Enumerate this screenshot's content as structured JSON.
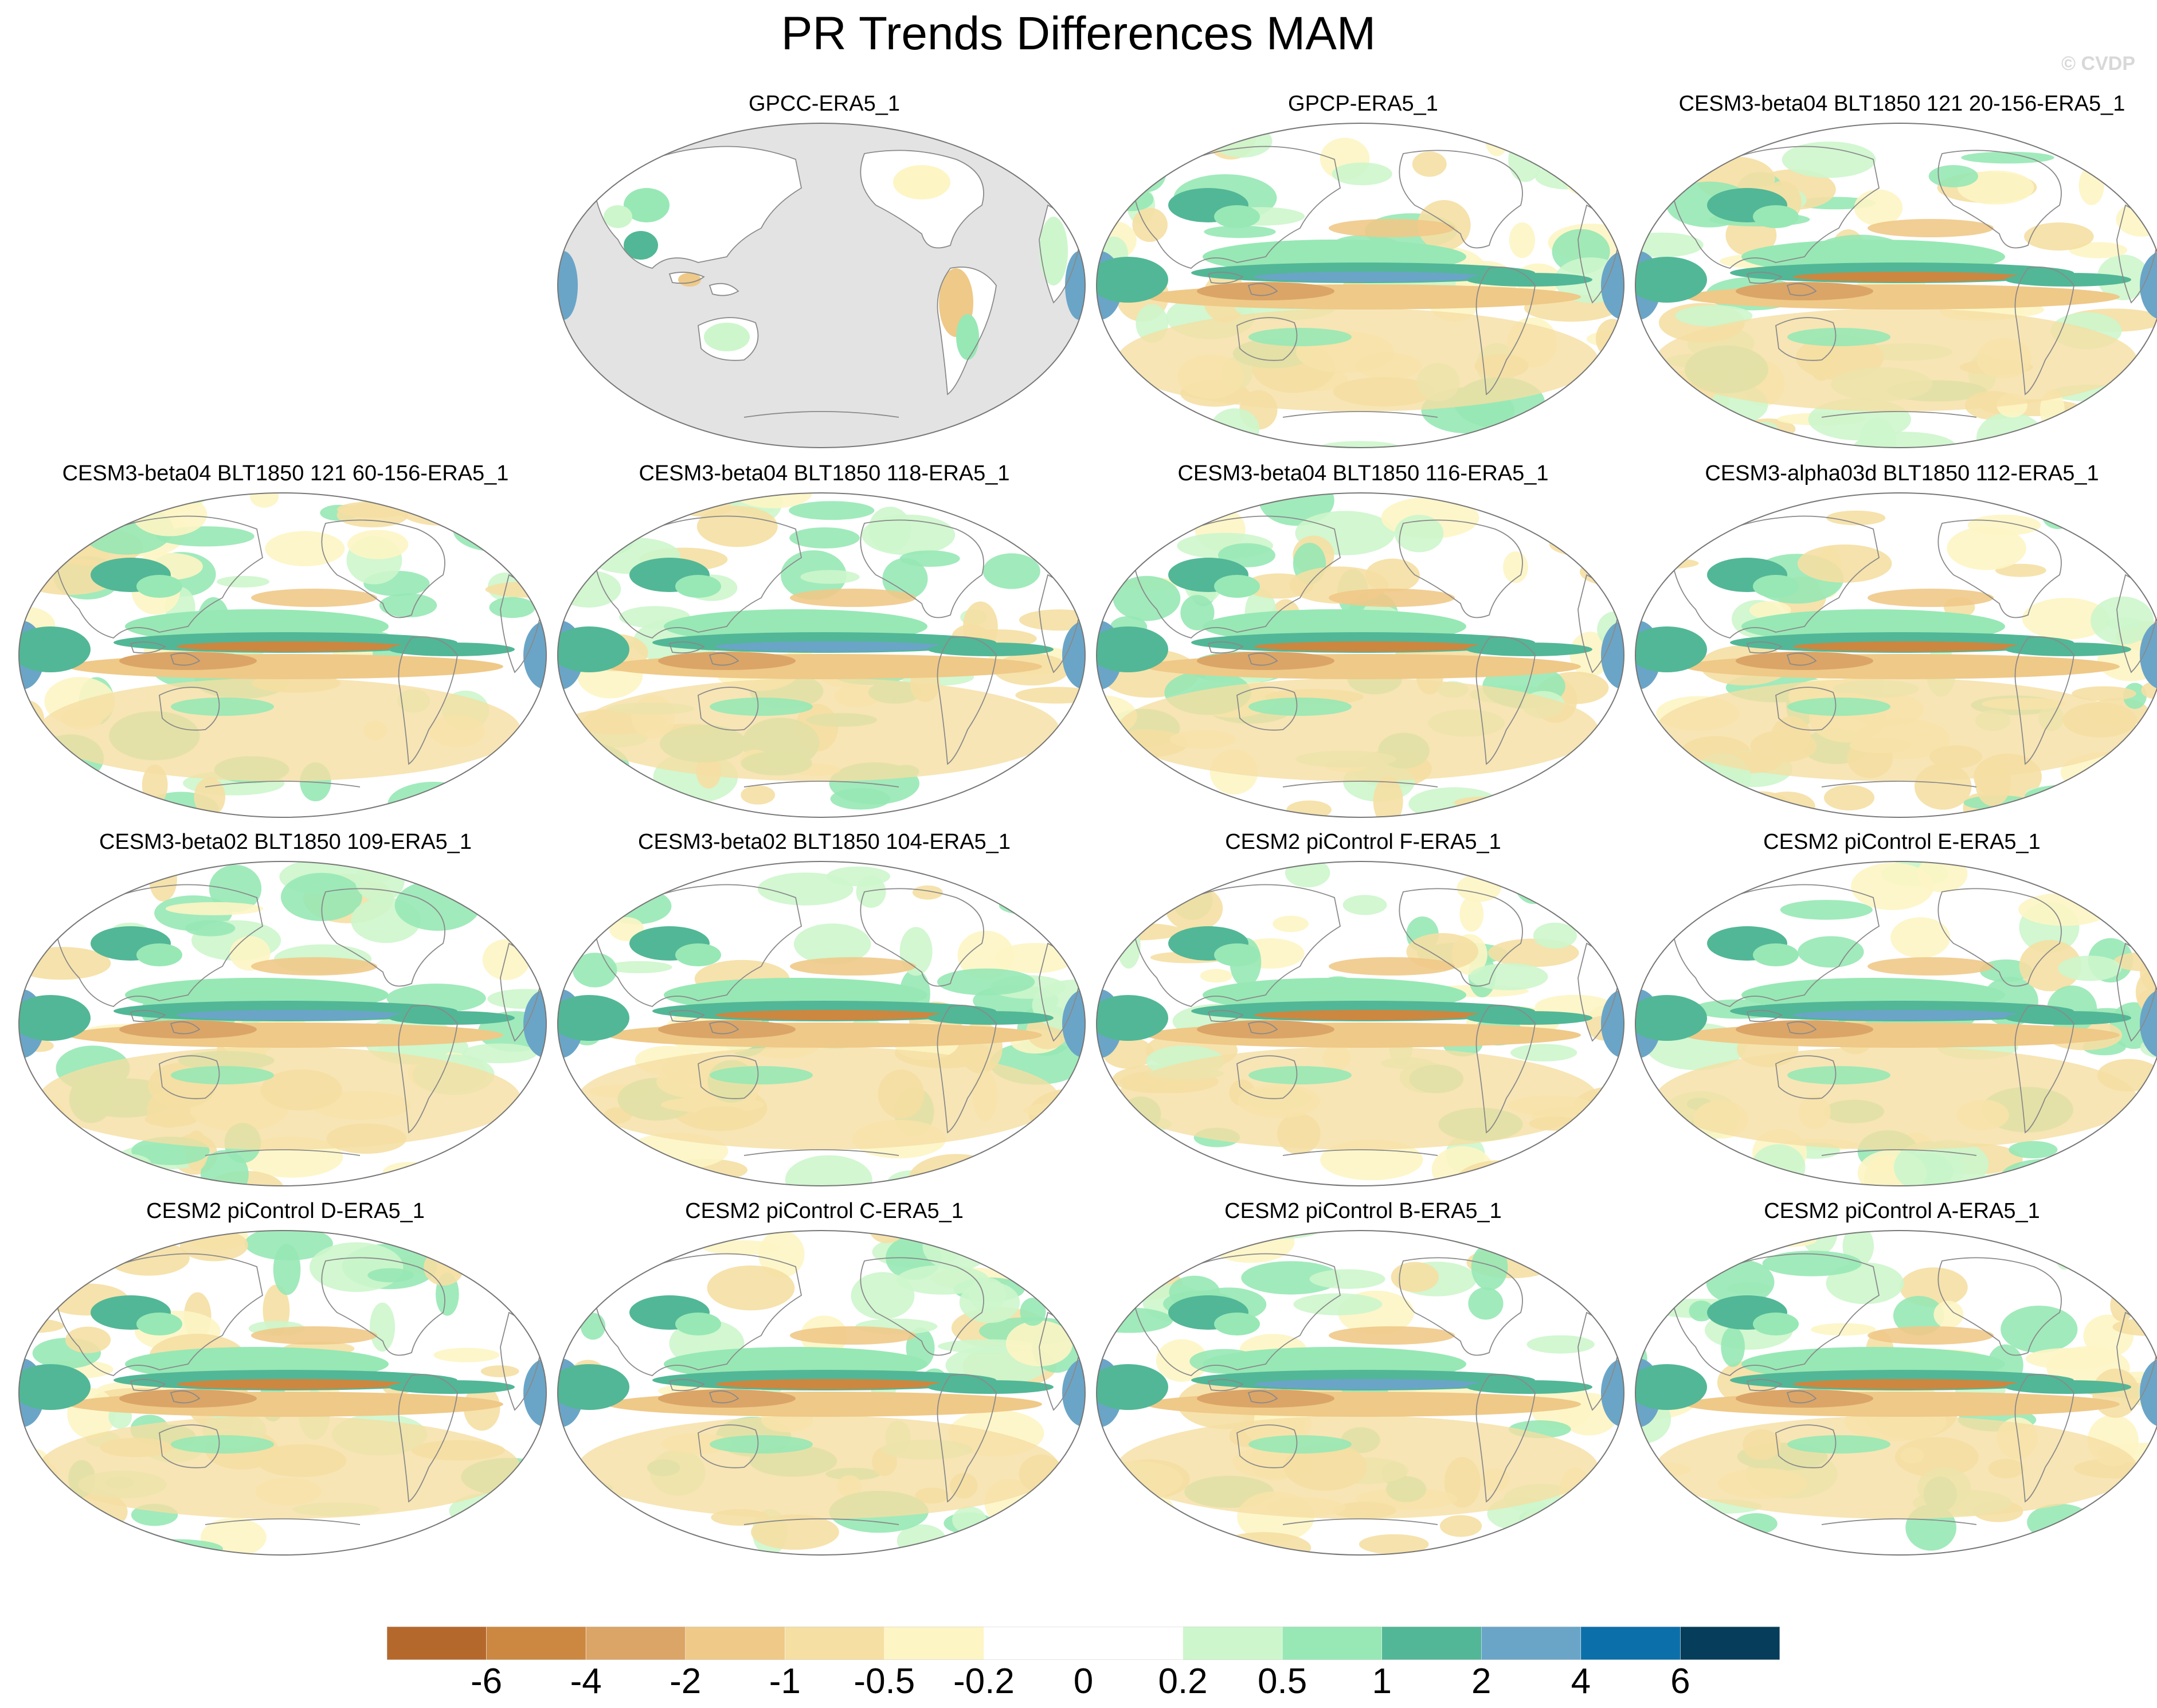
{
  "title": "PR Trends Differences MAM",
  "watermark": "© CVDP",
  "panels": [
    {
      "label": "GPCC-ERA5_1",
      "style": "obs-land"
    },
    {
      "label": "GPCP-ERA5_1",
      "style": "global"
    },
    {
      "label": "CESM3-beta04 BLT1850 121 20-156-ERA5_1",
      "style": "model"
    },
    {
      "label": "CESM3-beta04 BLT1850 121 60-156-ERA5_1",
      "style": "model"
    },
    {
      "label": "CESM3-beta04 BLT1850 118-ERA5_1",
      "style": "model"
    },
    {
      "label": "CESM3-beta04 BLT1850 116-ERA5_1",
      "style": "model"
    },
    {
      "label": "CESM3-alpha03d BLT1850 112-ERA5_1",
      "style": "model"
    },
    {
      "label": "CESM3-beta02 BLT1850 109-ERA5_1",
      "style": "model"
    },
    {
      "label": "CESM3-beta02 BLT1850 104-ERA5_1",
      "style": "model"
    },
    {
      "label": "CESM2 piControl F-ERA5_1",
      "style": "model"
    },
    {
      "label": "CESM2 piControl E-ERA5_1",
      "style": "model"
    },
    {
      "label": "CESM2 piControl D-ERA5_1",
      "style": "model"
    },
    {
      "label": "CESM2 piControl C-ERA5_1",
      "style": "model"
    },
    {
      "label": "CESM2 piControl B-ERA5_1",
      "style": "model"
    },
    {
      "label": "CESM2 piControl A-ERA5_1",
      "style": "model"
    }
  ],
  "colorbar": {
    "colors": [
      "#b5682c",
      "#cc8741",
      "#dba567",
      "#efc988",
      "#f5dfa3",
      "#fdf5c4",
      "#ffffff",
      "#ffffff",
      "#cdf6cc",
      "#97e8b5",
      "#52b796",
      "#6aa5c7",
      "#0b6faa",
      "#053d5a"
    ],
    "labels": [
      "-6",
      "-4",
      "-2",
      "-1",
      "-0.5",
      "-0.2",
      "0",
      "0.2",
      "0.5",
      "1",
      "2",
      "4",
      "6"
    ]
  },
  "map_colors": {
    "ocean_missing": "#e3e3e3",
    "coast": "#8a8a8a",
    "border": "#777777"
  }
}
